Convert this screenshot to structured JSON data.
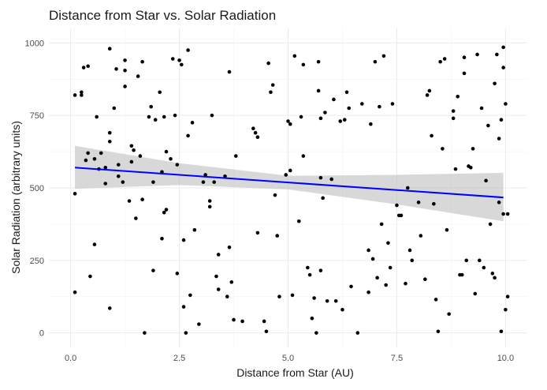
{
  "chart_data": {
    "type": "scatter",
    "title": "Distance from Star vs. Solar Radiation",
    "xlabel": "Distance from Star (AU)",
    "ylabel": "Solar Radiation (arbitrary units)",
    "xlim": [
      -0.5,
      10.5
    ],
    "ylim": [
      -50,
      1050
    ],
    "x_ticks": [
      0.0,
      2.5,
      5.0,
      7.5,
      10.0
    ],
    "x_tick_labels": [
      "0.0",
      "2.5",
      "5.0",
      "7.5",
      "10.0"
    ],
    "y_ticks": [
      0,
      250,
      500,
      750,
      1000
    ],
    "y_tick_labels": [
      "0",
      "250",
      "500",
      "750",
      "1000"
    ],
    "grid": true,
    "point_color": "#000000",
    "line_color": "#0000ff",
    "band_color": "#bebebe",
    "regression": {
      "x": [
        0.1,
        9.95
      ],
      "y": [
        570,
        467
      ]
    },
    "confidence_band": {
      "x": [
        0.1,
        2.5,
        5.0,
        7.5,
        9.95
      ],
      "upper": [
        645,
        585,
        542,
        545,
        552
      ],
      "lower": [
        497,
        510,
        495,
        443,
        385
      ]
    },
    "points": [
      [
        0.1,
        820
      ],
      [
        0.1,
        480
      ],
      [
        0.1,
        140
      ],
      [
        0.25,
        830
      ],
      [
        0.25,
        820
      ],
      [
        0.3,
        915
      ],
      [
        0.4,
        920
      ],
      [
        0.35,
        595
      ],
      [
        0.4,
        620
      ],
      [
        0.45,
        195
      ],
      [
        0.55,
        600
      ],
      [
        0.6,
        745
      ],
      [
        0.55,
        305
      ],
      [
        0.65,
        565
      ],
      [
        0.7,
        620
      ],
      [
        0.8,
        570
      ],
      [
        0.8,
        515
      ],
      [
        0.9,
        980
      ],
      [
        0.9,
        690
      ],
      [
        0.9,
        660
      ],
      [
        0.9,
        85
      ],
      [
        1.0,
        775
      ],
      [
        1.05,
        910
      ],
      [
        1.1,
        580
      ],
      [
        1.1,
        540
      ],
      [
        1.2,
        520
      ],
      [
        1.25,
        940
      ],
      [
        1.25,
        905
      ],
      [
        1.25,
        850
      ],
      [
        1.35,
        455
      ],
      [
        1.4,
        645
      ],
      [
        1.4,
        590
      ],
      [
        1.45,
        630
      ],
      [
        1.5,
        395
      ],
      [
        1.55,
        885
      ],
      [
        1.6,
        610
      ],
      [
        1.65,
        460
      ],
      [
        1.65,
        935
      ],
      [
        1.7,
        0
      ],
      [
        1.8,
        745
      ],
      [
        1.85,
        780
      ],
      [
        1.9,
        520
      ],
      [
        1.9,
        215
      ],
      [
        1.95,
        735
      ],
      [
        2.05,
        830
      ],
      [
        2.1,
        555
      ],
      [
        2.1,
        325
      ],
      [
        2.15,
        745
      ],
      [
        2.15,
        415
      ],
      [
        2.2,
        425
      ],
      [
        2.2,
        625
      ],
      [
        2.3,
        600
      ],
      [
        2.35,
        945
      ],
      [
        2.4,
        750
      ],
      [
        2.45,
        205
      ],
      [
        2.45,
        580
      ],
      [
        2.5,
        940
      ],
      [
        2.55,
        925
      ],
      [
        2.6,
        90
      ],
      [
        2.6,
        320
      ],
      [
        2.65,
        0
      ],
      [
        2.7,
        975
      ],
      [
        2.7,
        680
      ],
      [
        2.75,
        130
      ],
      [
        2.8,
        725
      ],
      [
        2.85,
        355
      ],
      [
        2.95,
        30
      ],
      [
        3.05,
        520
      ],
      [
        3.1,
        545
      ],
      [
        3.2,
        435
      ],
      [
        3.2,
        455
      ],
      [
        3.25,
        750
      ],
      [
        3.3,
        520
      ],
      [
        3.35,
        195
      ],
      [
        3.4,
        270
      ],
      [
        3.4,
        150
      ],
      [
        3.55,
        540
      ],
      [
        3.6,
        125
      ],
      [
        3.65,
        900
      ],
      [
        3.65,
        295
      ],
      [
        3.7,
        175
      ],
      [
        3.75,
        45
      ],
      [
        3.8,
        610
      ],
      [
        3.95,
        40
      ],
      [
        4.2,
        705
      ],
      [
        4.25,
        690
      ],
      [
        4.3,
        675
      ],
      [
        4.3,
        345
      ],
      [
        4.45,
        40
      ],
      [
        4.5,
        5
      ],
      [
        4.55,
        930
      ],
      [
        4.6,
        830
      ],
      [
        4.65,
        855
      ],
      [
        4.7,
        475
      ],
      [
        4.75,
        335
      ],
      [
        4.8,
        125
      ],
      [
        4.95,
        545
      ],
      [
        5.0,
        730
      ],
      [
        5.05,
        560
      ],
      [
        5.05,
        720
      ],
      [
        5.1,
        130
      ],
      [
        5.15,
        955
      ],
      [
        5.25,
        385
      ],
      [
        5.3,
        745
      ],
      [
        5.35,
        610
      ],
      [
        5.35,
        925
      ],
      [
        5.45,
        225
      ],
      [
        5.5,
        200
      ],
      [
        5.55,
        50
      ],
      [
        5.6,
        120
      ],
      [
        5.65,
        0
      ],
      [
        5.7,
        935
      ],
      [
        5.7,
        835
      ],
      [
        5.75,
        740
      ],
      [
        5.75,
        535
      ],
      [
        5.75,
        215
      ],
      [
        5.8,
        465
      ],
      [
        5.85,
        760
      ],
      [
        5.9,
        110
      ],
      [
        6.0,
        530
      ],
      [
        6.05,
        805
      ],
      [
        6.1,
        110
      ],
      [
        6.2,
        730
      ],
      [
        6.25,
        80
      ],
      [
        6.3,
        735
      ],
      [
        6.35,
        830
      ],
      [
        6.4,
        775
      ],
      [
        6.45,
        160
      ],
      [
        6.6,
        0
      ],
      [
        6.7,
        790
      ],
      [
        6.85,
        285
      ],
      [
        6.85,
        140
      ],
      [
        6.9,
        720
      ],
      [
        6.95,
        255
      ],
      [
        7.0,
        935
      ],
      [
        7.05,
        190
      ],
      [
        7.1,
        780
      ],
      [
        7.15,
        375
      ],
      [
        7.2,
        955
      ],
      [
        7.25,
        165
      ],
      [
        7.3,
        310
      ],
      [
        7.35,
        225
      ],
      [
        7.4,
        790
      ],
      [
        7.5,
        440
      ],
      [
        7.55,
        405
      ],
      [
        7.6,
        405
      ],
      [
        7.7,
        170
      ],
      [
        7.75,
        500
      ],
      [
        7.8,
        285
      ],
      [
        7.85,
        250
      ],
      [
        8.0,
        450
      ],
      [
        8.05,
        335
      ],
      [
        8.15,
        185
      ],
      [
        8.2,
        820
      ],
      [
        8.25,
        835
      ],
      [
        8.3,
        680
      ],
      [
        8.35,
        445
      ],
      [
        8.4,
        115
      ],
      [
        8.45,
        5
      ],
      [
        8.5,
        935
      ],
      [
        8.55,
        635
      ],
      [
        8.6,
        945
      ],
      [
        8.65,
        355
      ],
      [
        8.7,
        65
      ],
      [
        8.8,
        765
      ],
      [
        8.8,
        740
      ],
      [
        8.85,
        565
      ],
      [
        8.9,
        815
      ],
      [
        8.95,
        200
      ],
      [
        9.0,
        200
      ],
      [
        9.05,
        950
      ],
      [
        9.05,
        895
      ],
      [
        9.1,
        250
      ],
      [
        9.15,
        575
      ],
      [
        9.2,
        570
      ],
      [
        9.25,
        635
      ],
      [
        9.3,
        135
      ],
      [
        9.35,
        960
      ],
      [
        9.4,
        250
      ],
      [
        9.45,
        775
      ],
      [
        9.5,
        225
      ],
      [
        9.55,
        525
      ],
      [
        9.6,
        715
      ],
      [
        9.65,
        375
      ],
      [
        9.7,
        205
      ],
      [
        9.75,
        190
      ],
      [
        9.75,
        860
      ],
      [
        9.8,
        960
      ],
      [
        9.85,
        450
      ],
      [
        9.9,
        5
      ],
      [
        9.95,
        410
      ],
      [
        10.0,
        80
      ],
      [
        9.85,
        670
      ],
      [
        9.9,
        735
      ],
      [
        9.95,
        985
      ],
      [
        9.95,
        915
      ],
      [
        10.0,
        790
      ],
      [
        10.05,
        410
      ],
      [
        10.05,
        125
      ]
    ]
  }
}
